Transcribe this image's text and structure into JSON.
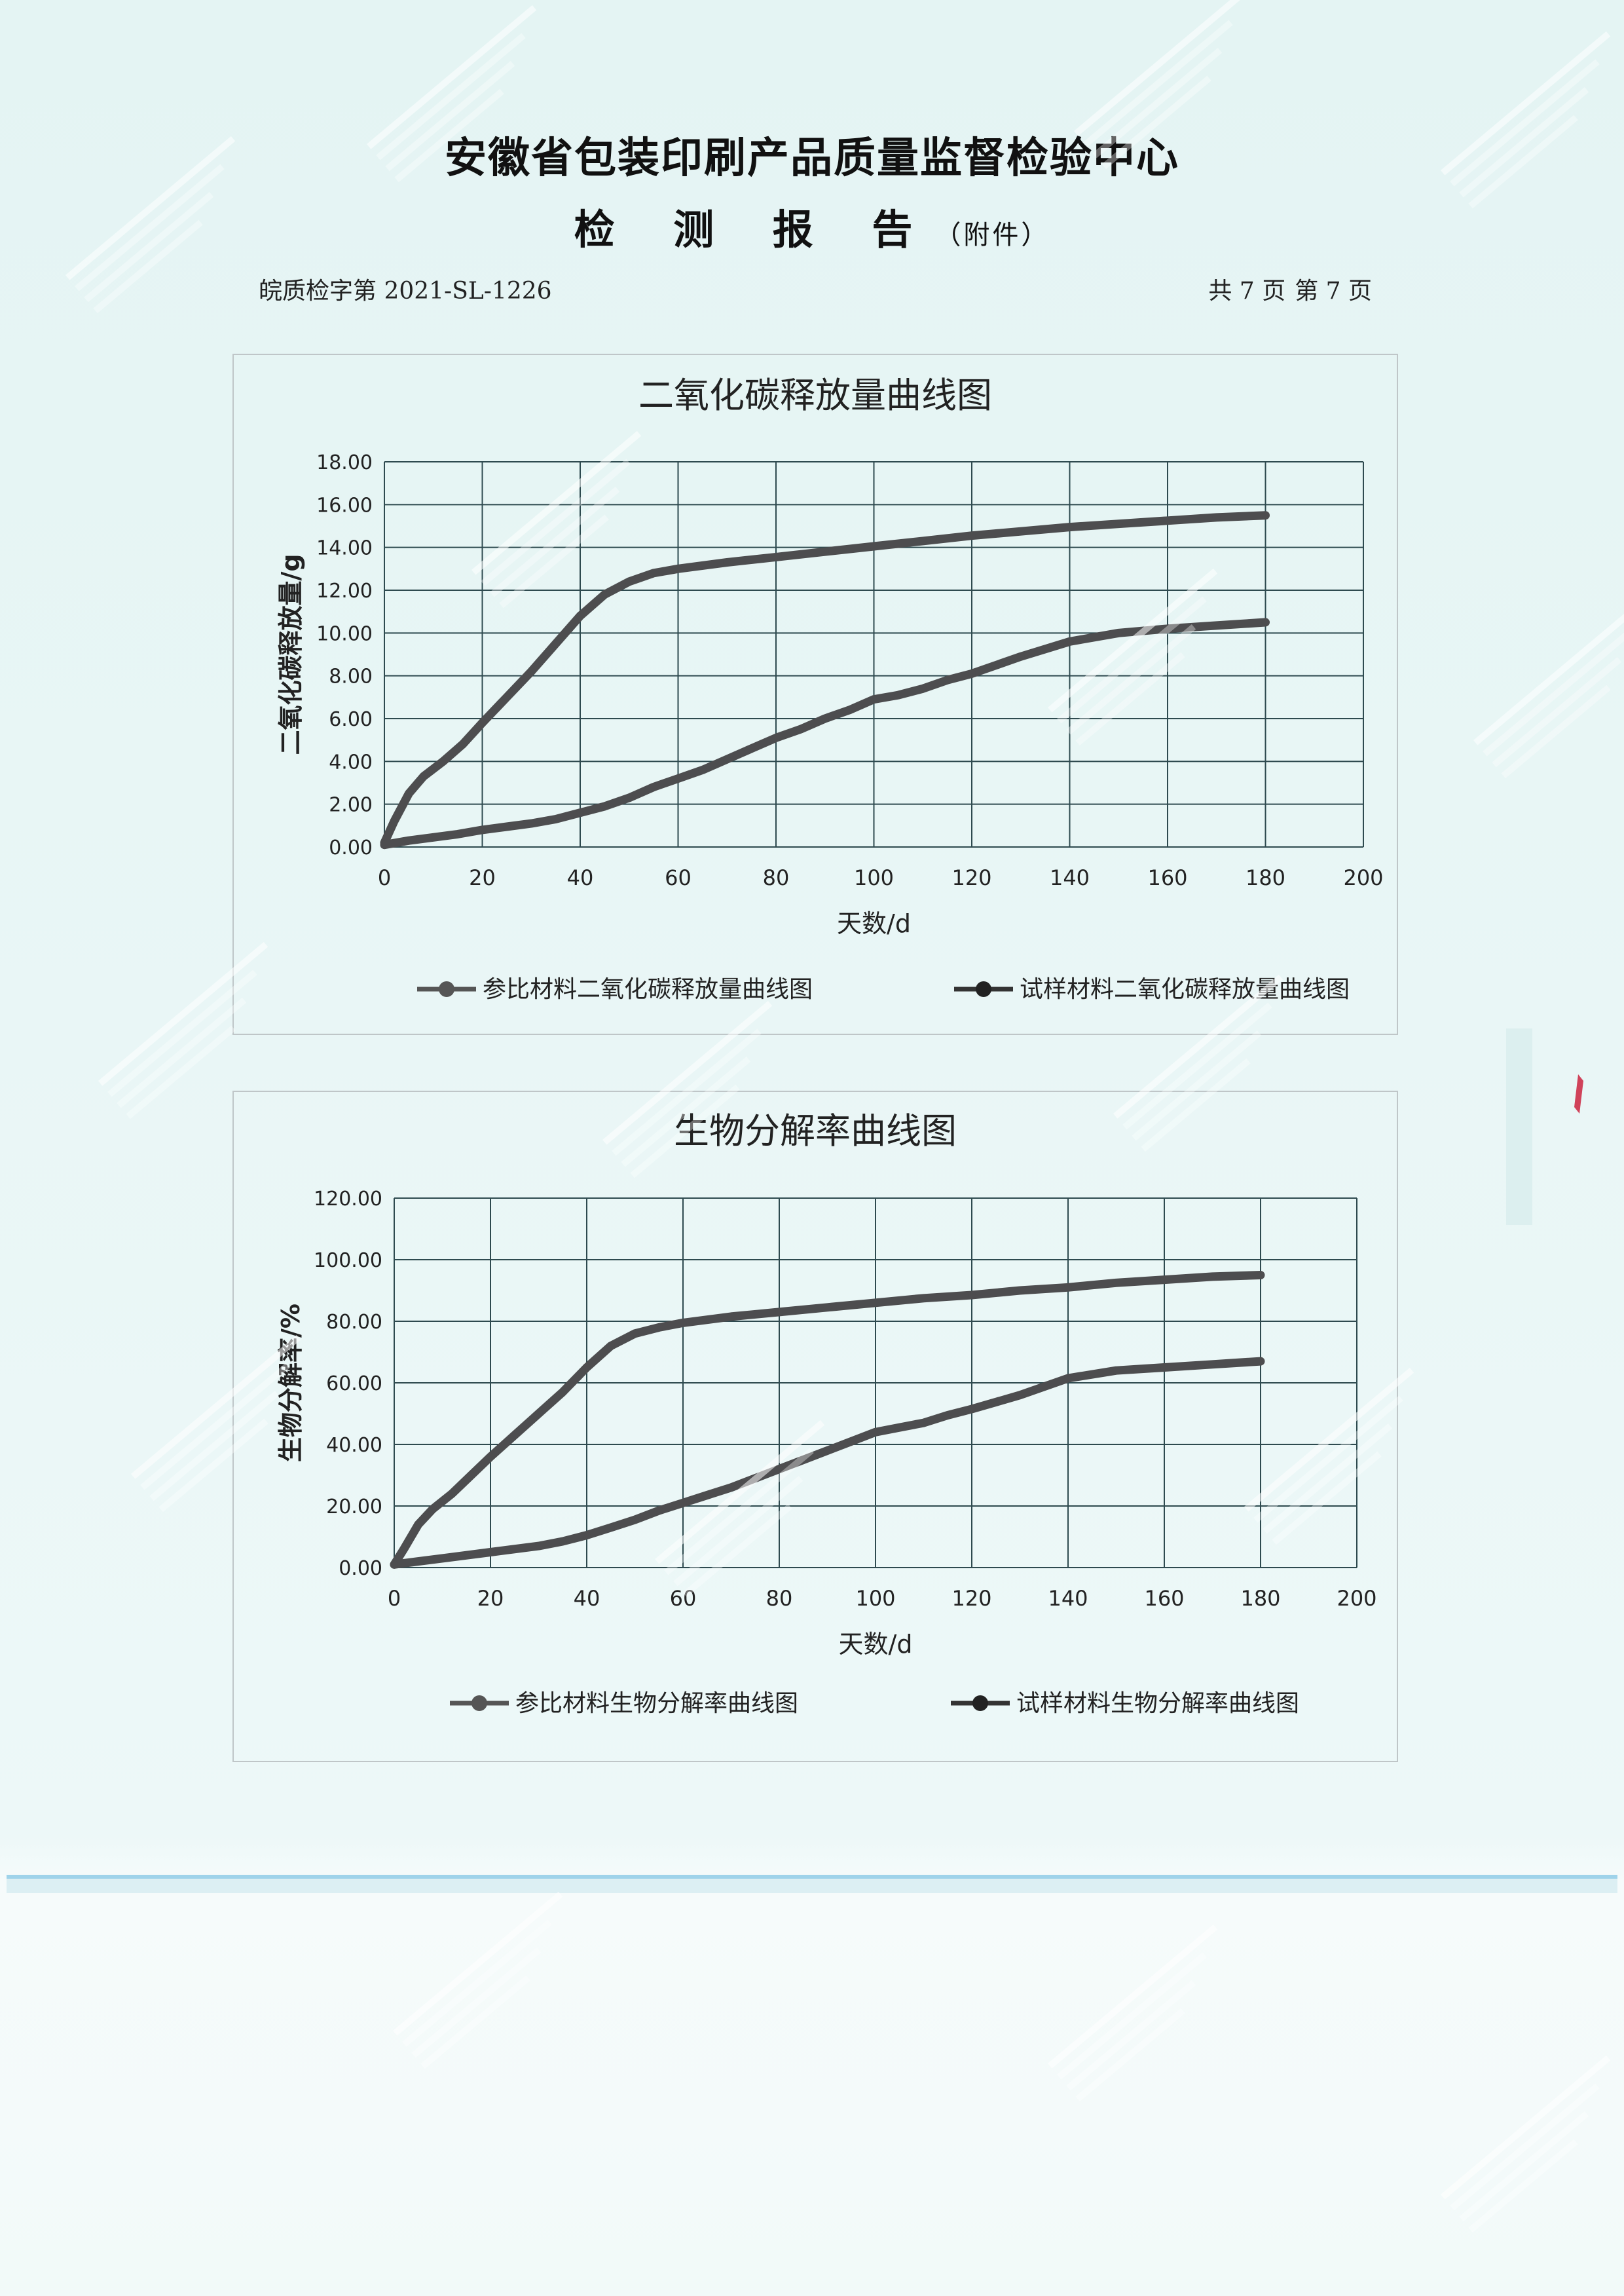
{
  "header": {
    "organization": "安徽省包装印刷产品质量监督检验中心",
    "report_title": "检 测 报 告",
    "report_subtitle": "（附件）"
  },
  "meta": {
    "report_number": "皖质检字第 2021-SL-1226",
    "total_pages": "共 7 页",
    "current_page": "第 7 页"
  },
  "colors": {
    "page_background": "#e9f6f6",
    "gridline": "#2e4a4f",
    "series_line": "#4d4d4f",
    "blue_band": "#9fd3ea"
  },
  "chart_data": [
    {
      "type": "line",
      "title": "二氧化碳释放量曲线图",
      "xlabel": "天数/d",
      "ylabel": "二氧化碳释放量/g",
      "xlim": [
        0,
        200
      ],
      "ylim": [
        0,
        18
      ],
      "x_ticks": [
        0,
        20,
        40,
        60,
        80,
        100,
        120,
        140,
        160,
        180,
        200
      ],
      "y_ticks": [
        0,
        2,
        4,
        6,
        8,
        10,
        12,
        14,
        16,
        18
      ],
      "x_tick_labels": [
        "0",
        "20",
        "40",
        "60",
        "80",
        "100",
        "120",
        "140",
        "160",
        "180",
        "200"
      ],
      "y_tick_labels": [
        "0.00",
        "2.00",
        "4.00",
        "6.00",
        "8.00",
        "10.00",
        "12.00",
        "14.00",
        "16.00",
        "18.00"
      ],
      "grid": true,
      "legend_position": "bottom",
      "series": [
        {
          "name": "参比材料二氧化碳释放量曲线图",
          "x": [
            0,
            2,
            5,
            8,
            12,
            16,
            20,
            25,
            30,
            35,
            40,
            45,
            50,
            55,
            60,
            70,
            80,
            90,
            100,
            110,
            120,
            130,
            140,
            150,
            160,
            170,
            180
          ],
          "y": [
            0.2,
            1.2,
            2.5,
            3.3,
            4.0,
            4.8,
            5.8,
            7.0,
            8.2,
            9.5,
            10.8,
            11.8,
            12.4,
            12.8,
            13.0,
            13.3,
            13.55,
            13.8,
            14.05,
            14.3,
            14.55,
            14.75,
            14.95,
            15.1,
            15.25,
            15.4,
            15.5
          ]
        },
        {
          "name": "试样材料二氧化碳释放量曲线图",
          "x": [
            0,
            5,
            10,
            15,
            20,
            25,
            30,
            35,
            40,
            45,
            50,
            55,
            60,
            65,
            70,
            75,
            80,
            85,
            90,
            95,
            100,
            105,
            110,
            115,
            120,
            130,
            140,
            150,
            160,
            170,
            180
          ],
          "y": [
            0.1,
            0.3,
            0.45,
            0.6,
            0.8,
            0.95,
            1.1,
            1.3,
            1.6,
            1.9,
            2.3,
            2.8,
            3.2,
            3.6,
            4.1,
            4.6,
            5.1,
            5.5,
            6.0,
            6.4,
            6.9,
            7.1,
            7.4,
            7.8,
            8.1,
            8.9,
            9.6,
            10.0,
            10.2,
            10.35,
            10.5
          ]
        }
      ]
    },
    {
      "type": "line",
      "title": "生物分解率曲线图",
      "xlabel": "天数/d",
      "ylabel": "生物分解率/%",
      "xlim": [
        0,
        200
      ],
      "ylim": [
        0,
        120
      ],
      "x_ticks": [
        0,
        20,
        40,
        60,
        80,
        100,
        120,
        140,
        160,
        180,
        200
      ],
      "y_ticks": [
        0,
        20,
        40,
        60,
        80,
        100,
        120
      ],
      "x_tick_labels": [
        "0",
        "20",
        "40",
        "60",
        "80",
        "100",
        "120",
        "140",
        "160",
        "180",
        "200"
      ],
      "y_tick_labels": [
        "0.00",
        "20.00",
        "40.00",
        "60.00",
        "80.00",
        "100.00",
        "120.00"
      ],
      "grid": true,
      "legend_position": "bottom",
      "series": [
        {
          "name": "参比材料生物分解率曲线图",
          "x": [
            0,
            2,
            5,
            8,
            12,
            16,
            20,
            25,
            30,
            35,
            40,
            45,
            50,
            55,
            60,
            70,
            80,
            90,
            100,
            110,
            120,
            130,
            140,
            150,
            160,
            170,
            180
          ],
          "y": [
            1,
            6,
            14,
            19,
            24,
            30,
            36,
            43,
            50,
            57,
            65,
            72,
            76,
            78,
            79.5,
            81.5,
            83,
            84.5,
            86,
            87.5,
            88.5,
            90,
            91,
            92.5,
            93.5,
            94.5,
            95
          ]
        },
        {
          "name": "试样材料生物分解率曲线图",
          "x": [
            0,
            10,
            20,
            30,
            35,
            40,
            45,
            50,
            55,
            60,
            65,
            70,
            75,
            80,
            85,
            90,
            95,
            100,
            105,
            110,
            115,
            120,
            130,
            140,
            150,
            160,
            170,
            180
          ],
          "y": [
            1,
            3,
            5,
            7,
            8.5,
            10.5,
            13,
            15.5,
            18.5,
            21,
            23.5,
            26,
            29,
            32,
            35,
            38,
            41,
            44,
            45.5,
            47,
            49.5,
            51.5,
            56,
            61.5,
            64,
            65,
            66,
            67
          ]
        }
      ]
    }
  ]
}
